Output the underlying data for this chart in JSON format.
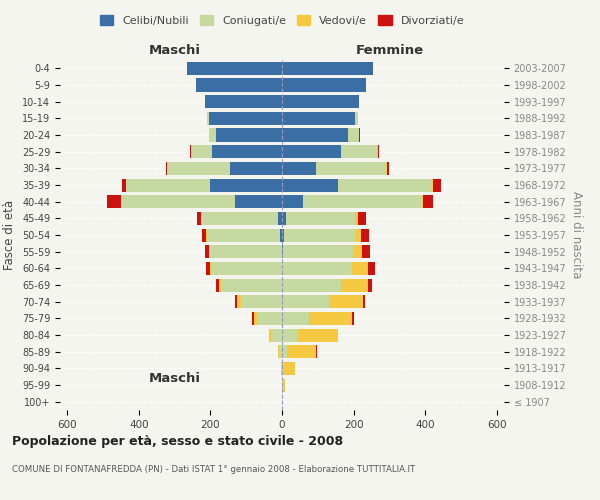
{
  "age_groups": [
    "100+",
    "95-99",
    "90-94",
    "85-89",
    "80-84",
    "75-79",
    "70-74",
    "65-69",
    "60-64",
    "55-59",
    "50-54",
    "45-49",
    "40-44",
    "35-39",
    "30-34",
    "25-29",
    "20-24",
    "15-19",
    "10-14",
    "5-9",
    "0-4"
  ],
  "birth_years": [
    "≤ 1907",
    "1908-1912",
    "1913-1917",
    "1918-1922",
    "1923-1927",
    "1928-1932",
    "1933-1937",
    "1938-1942",
    "1943-1947",
    "1948-1952",
    "1953-1957",
    "1958-1962",
    "1963-1967",
    "1968-1972",
    "1973-1977",
    "1978-1982",
    "1983-1987",
    "1988-1992",
    "1993-1997",
    "1998-2002",
    "2003-2007"
  ],
  "males": {
    "celibi": [
      0,
      0,
      0,
      0,
      0,
      0,
      0,
      0,
      0,
      0,
      5,
      10,
      130,
      200,
      145,
      195,
      185,
      205,
      215,
      240,
      265
    ],
    "coniugati": [
      0,
      0,
      2,
      8,
      30,
      70,
      115,
      170,
      195,
      200,
      205,
      215,
      320,
      235,
      175,
      60,
      20,
      5,
      0,
      0,
      0
    ],
    "vedovi": [
      0,
      0,
      0,
      2,
      5,
      8,
      12,
      5,
      5,
      3,
      2,
      2,
      0,
      0,
      0,
      0,
      0,
      0,
      0,
      0,
      0
    ],
    "divorziati": [
      0,
      0,
      0,
      0,
      0,
      5,
      3,
      8,
      12,
      12,
      12,
      10,
      40,
      12,
      5,
      2,
      0,
      0,
      0,
      0,
      0
    ]
  },
  "females": {
    "nubili": [
      0,
      0,
      0,
      0,
      0,
      0,
      0,
      0,
      0,
      3,
      5,
      10,
      60,
      155,
      95,
      165,
      185,
      205,
      215,
      235,
      255
    ],
    "coniugate": [
      0,
      2,
      5,
      15,
      45,
      75,
      130,
      165,
      195,
      195,
      200,
      195,
      330,
      265,
      195,
      100,
      30,
      8,
      0,
      0,
      0
    ],
    "vedove": [
      1,
      5,
      30,
      80,
      110,
      120,
      95,
      75,
      45,
      25,
      15,
      8,
      3,
      2,
      2,
      2,
      0,
      0,
      0,
      0,
      0
    ],
    "divorziate": [
      0,
      0,
      0,
      2,
      2,
      5,
      8,
      10,
      20,
      22,
      22,
      22,
      28,
      22,
      8,
      5,
      2,
      0,
      0,
      0,
      0
    ]
  },
  "colors": {
    "celibi": "#3a6ea5",
    "coniugati": "#c5d9a0",
    "vedovi": "#f5c842",
    "divorziati": "#cc1111"
  },
  "xlim": 620,
  "title": "Popolazione per età, sesso e stato civile - 2008",
  "subtitle": "COMUNE DI FONTANAFREDDA (PN) - Dati ISTAT 1° gennaio 2008 - Elaborazione TUTTITALIA.IT",
  "ylabel": "Fasce di età",
  "ylabel_right": "Anni di nascita",
  "xlabel_maschi": "Maschi",
  "xlabel_femmine": "Femmine",
  "bg_color": "#f5f5f0",
  "plot_bg": "#f5f5f0"
}
